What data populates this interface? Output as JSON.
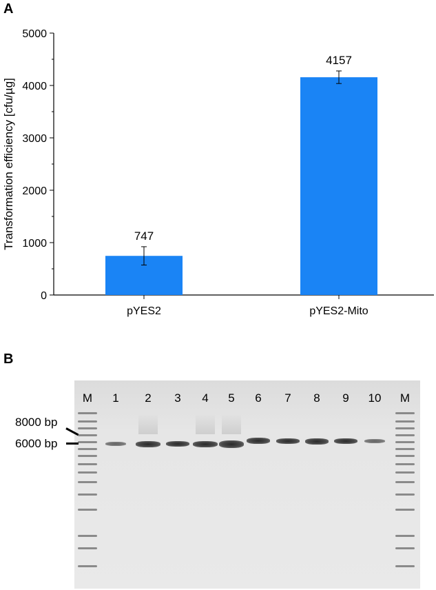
{
  "panel_a_label": "A",
  "panel_b_label": "B",
  "chart_data": {
    "type": "bar",
    "categories": [
      "pYES2",
      "pYES2-Mito"
    ],
    "values": [
      747,
      4157
    ],
    "error": [
      175,
      120
    ],
    "data_labels": [
      "747",
      "4157"
    ],
    "ylabel": "Transformation efficiency [cfu/µg]",
    "xlabel": "",
    "ylim": [
      0,
      5000
    ],
    "yticks": [
      "0",
      "1000",
      "2000",
      "3000",
      "4000",
      "5000"
    ],
    "bar_color": "#1a84f5",
    "grid": false
  },
  "gel": {
    "lane_labels": [
      "M",
      "1",
      "2",
      "3",
      "4",
      "5",
      "6",
      "7",
      "8",
      "9",
      "10",
      "M"
    ],
    "size_markers": [
      "8000 bp",
      "6000 bp"
    ],
    "band_color": "#2a2a2a",
    "background_color": "#e4e4e4"
  }
}
